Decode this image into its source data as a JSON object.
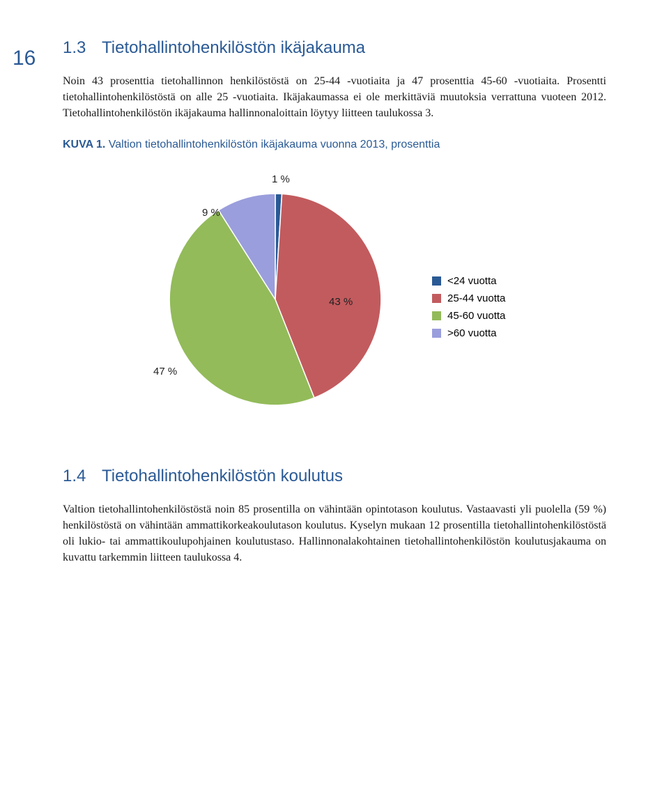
{
  "page_number": "16",
  "section1": {
    "number": "1.3",
    "title": "Tietohallintohenkilöstön ikäjakauma",
    "paragraph": "Noin 43 prosenttia tietohallinnon henkilöstöstä on 25-44 -vuotiaita ja 47 prosenttia 45-60 -vuotiaita. Prosentti tietohallintohenkilöstöstä on alle 25 -vuotiaita. Ikäjakaumassa ei ole merkittäviä muutoksia verrattuna vuoteen 2012. Tietohallintohenkilöstön ikäjakauma hallinnonaloittain löytyy liitteen taulukossa 3."
  },
  "figure": {
    "label": "KUVA 1.",
    "title": "Valtion tietohallintohenkilöstön ikäjakauma vuonna 2013, prosenttia",
    "type": "pie",
    "slices": [
      {
        "label": "<24 vuotta",
        "value": 1,
        "pct_label": "1 %",
        "color": "#2a5a95"
      },
      {
        "label": "25-44 vuotta",
        "value": 43,
        "pct_label": "43 %",
        "color": "#c25b5e"
      },
      {
        "label": "45-60 vuotta",
        "value": 47,
        "pct_label": "47 %",
        "color": "#93bb5a"
      },
      {
        "label": ">60 vuotta",
        "value": 9,
        "pct_label": "9 %",
        "color": "#9a9edc"
      }
    ],
    "background_color": "#ffffff",
    "label_fontsize": 15,
    "legend_fontsize": 15,
    "legend_position": "right",
    "start_angle_deg": -90
  },
  "section2": {
    "number": "1.4",
    "title": "Tietohallintohenkilöstön koulutus",
    "paragraph": "Valtion tietohallintohenkilöstöstä noin 85 prosentilla on vähintään opintotason koulutus. Vastaavasti yli puolella (59 %) henkilöstöstä on vähintään ammattikorkeakoulutason koulutus. Kyselyn mukaan 12 prosentilla tietohallintohenkilöstöstä oli lukio- tai ammattikoulupohjainen koulutustaso. Hallinnonalakohtainen tietohallintohenkilöstön koulutusjakauma on kuvattu tarkemmin liitteen taulukossa 4."
  }
}
